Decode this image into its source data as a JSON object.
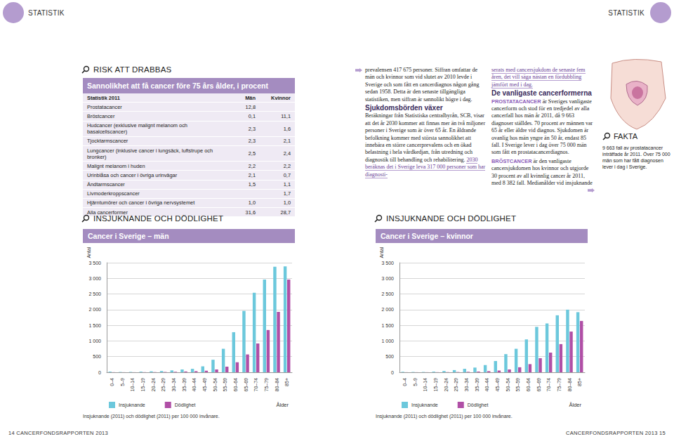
{
  "header": {
    "left": "STATISTIK",
    "right": "STATISTIK"
  },
  "risk": {
    "heading": "RISK ATT DRABBAS",
    "table": {
      "title": "Sannolikhet att få cancer före 75 års ålder, i procent",
      "columns": [
        "Statistik 2011",
        "Män",
        "Kvinnor"
      ],
      "rows": [
        [
          "Prostatacancer",
          "12,8",
          null
        ],
        [
          "Bröstcancer",
          "0,1",
          "11,1"
        ],
        [
          "Hudcancer (exklusive malignt melanom och basalcellscancer)",
          "2,3",
          "1,6"
        ],
        [
          "Tjocktarmscancer",
          "2,3",
          "2,1"
        ],
        [
          "Lungcancer (inklusive cancer i lungsäck, luftstrupe och bronker)",
          "2,5",
          "2,4"
        ],
        [
          "Malignt melanom i huden",
          "2,2",
          "2,2"
        ],
        [
          "Urinblåsa och cancer i övriga urinvägar",
          "2,1",
          "0,7"
        ],
        [
          "Ändtarmscancer",
          "1,5",
          "1,1"
        ],
        [
          "Livmoderkroppscancer",
          null,
          "1,7"
        ],
        [
          "Hjärntumörer och cancer i övriga nervsystemet",
          "1,0",
          "1,0"
        ],
        [
          "Alla cancerformer",
          "31,6",
          "28,7"
        ]
      ]
    }
  },
  "columns": [
    [
      {
        "segments": [
          {
            "text": "prevalensen 417 675 personer. Siffran omfattar de män och kvinnor som vid slutet av 2010 levde i Sverige och som fått en cancerdiagnos någon gång sedan 1958. Detta är den senaste tillgängliga statistiken, men siffran är sannolikt högre i dag."
          }
        ]
      },
      {
        "heading": "Sjukdomsbörden växer"
      },
      {
        "segments": [
          {
            "text": "Beräkningar från Statistiska centralbyrån, SCB, visar att det år 2030 kommer att finnas mer än två miljoner personer i Sverige som är över 65 år. En åldrande befolkning kommer med största sannolikhet att innebära en större cancerprevalens och en ökad belastning i hela vårdkedjan, från utredning och diagnostik till behandling och rehabilitering. "
          },
          {
            "text": "2030 beräknas det i Sverige leva 317 000 personer som har diagnosti-",
            "highlight": true
          }
        ]
      }
    ],
    [
      {
        "segments": [
          {
            "text": "serats med cancersjukdom de senaste fem åren, det vill säga nästan en fördubbling jämfört med i dag.",
            "highlight": true
          }
        ]
      },
      {
        "heading": "De vanligaste cancerformerna"
      },
      {
        "segments": [
          {
            "lead": "PROSTATACANCER"
          },
          {
            "text": " är Sveriges vanligaste cancerform och stod för en tredjedel av alla cancerfall hos män år 2011, då 9 663 diagnoser ställdes. 70 procent av männen var 65 år eller äldre vid diagnos. Sjukdomen är ovanlig hos män yngre än 50 år, endast 85 fall. I Sverige lever i dag över 75 000 män som fått en prostatacancerdiagnos."
          }
        ]
      },
      {
        "segments": [
          {
            "lead": "BRÖSTCANCER"
          },
          {
            "text": " är den vanligaste cancersjukdomen hos kvinnor och utgjorde 30 procent av all kvinnlig cancer år 2011, med 8 382 fall. Medianålder vid insjuknande"
          }
        ]
      }
    ]
  ],
  "fakta": {
    "heading": "FAKTA",
    "text": "9 663 fall av prostatacancer inträffade år 2011. Över 75 000 män som har fått diagnosen lever i dag i Sverige."
  },
  "chart_sections": [
    {
      "heading": "INSJUKNANDE OCH DÖDLIGHET",
      "note": "Insjuknande (2011) och dödlighet (2011) per 100 000 invånare."
    },
    {
      "heading": "INSJUKNANDE OCH DÖDLIGHET",
      "note": "Insjuknande (2011) och dödlighet (2011) per 100 000 invånare."
    }
  ],
  "chart_data": [
    {
      "type": "bar",
      "title": "Cancer i Sverige – män",
      "y_label": "Antal",
      "x_label": "Ålder",
      "categories": [
        "0–4",
        "5–9",
        "10–14",
        "15–19",
        "20–24",
        "25–29",
        "30–34",
        "35–39",
        "40–44",
        "45–49",
        "50–54",
        "55–59",
        "60–64",
        "65–69",
        "70–74",
        "75–79",
        "80–84",
        "85+"
      ],
      "series": [
        {
          "name": "Insjuknande",
          "color": "#6cc8dc",
          "values": [
            20,
            10,
            12,
            20,
            30,
            40,
            60,
            90,
            110,
            190,
            400,
            750,
            1280,
            1960,
            2540,
            2960,
            3370,
            3380
          ]
        },
        {
          "name": "Dödlighet",
          "color": "#b04fa6",
          "values": [
            3,
            2,
            2,
            4,
            6,
            10,
            15,
            25,
            35,
            50,
            90,
            180,
            320,
            570,
            920,
            1350,
            1930,
            2960
          ]
        }
      ],
      "ylim": [
        0,
        3500
      ],
      "yticks": [
        0,
        500,
        {
          "value": 1000,
          "label": "1 000"
        },
        {
          "value": 1500,
          "label": "1 500"
        },
        {
          "value": 2000,
          "label": "2 000"
        },
        {
          "value": 2500,
          "label": "2 500"
        },
        {
          "value": 3000,
          "label": "3 000"
        },
        {
          "value": 3500,
          "label": "3 500"
        }
      ],
      "grid": true,
      "legend": "bottom-left"
    },
    {
      "type": "bar",
      "title": "Cancer i Sverige – kvinnor",
      "y_label": "Antal",
      "x_label": "Ålder",
      "categories": [
        "0–4",
        "5–9",
        "10–14",
        "15–19",
        "20–24",
        "25–29",
        "30–34",
        "35–39",
        "40–44",
        "45–49",
        "50–54",
        "55–59",
        "60–64",
        "65–69",
        "70–74",
        "75–79",
        "80–84",
        "85+"
      ],
      "series": [
        {
          "name": "Insjuknande",
          "color": "#6cc8dc",
          "values": [
            15,
            10,
            10,
            20,
            40,
            70,
            110,
            150,
            230,
            360,
            580,
            750,
            1050,
            1450,
            1560,
            1820,
            2000,
            1920
          ]
        },
        {
          "name": "Dödlighet",
          "color": "#b04fa6",
          "values": [
            2,
            2,
            2,
            3,
            5,
            8,
            14,
            22,
            35,
            55,
            90,
            160,
            260,
            450,
            630,
            900,
            1300,
            1640
          ]
        }
      ],
      "ylim": [
        0,
        3500
      ],
      "yticks": [
        0,
        500,
        {
          "value": 1000,
          "label": "1 000"
        },
        {
          "value": 1500,
          "label": "1 500"
        },
        {
          "value": 2000,
          "label": "2 000"
        },
        {
          "value": 2500,
          "label": "2 500"
        },
        {
          "value": 3000,
          "label": "3 000"
        },
        {
          "value": 3500,
          "label": "3 500"
        }
      ],
      "grid": true,
      "legend": "bottom-left"
    }
  ],
  "footer": {
    "left": "14 CANCERFONDSRAPPORTEN 2013",
    "right": "CANCERFONDSRAPPORTEN 2013 15"
  }
}
